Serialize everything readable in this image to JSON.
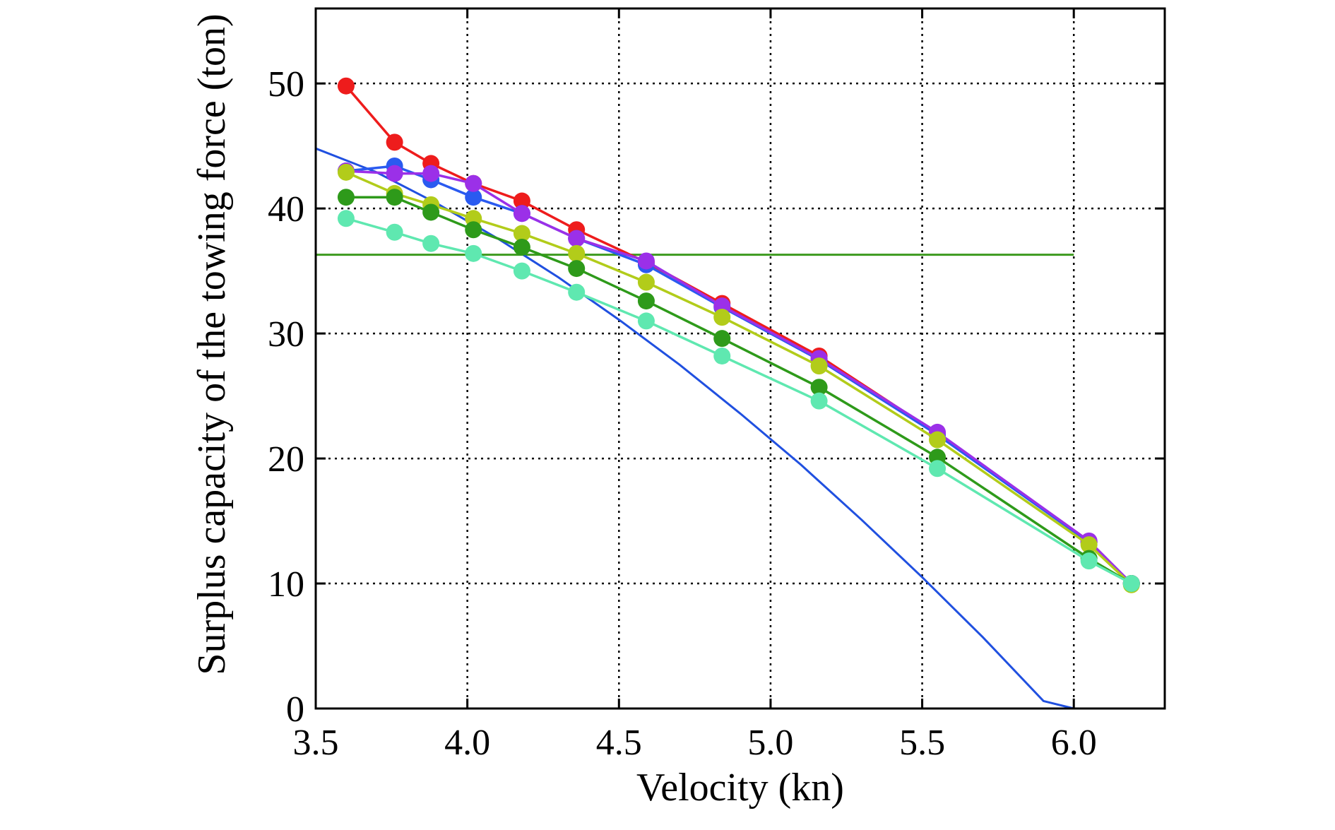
{
  "chart_data": {
    "type": "line",
    "xlabel": "Velocity (kn)",
    "ylabel": "Surplus capacity of the towing force (ton)",
    "xlim": [
      3.5,
      6.3
    ],
    "ylim": [
      0,
      56
    ],
    "xticks": [
      3.5,
      4.0,
      4.5,
      5.0,
      5.5,
      6.0
    ],
    "xtick_labels": [
      "3.5",
      "4.0",
      "4.5",
      "5.0",
      "5.5",
      "6.0"
    ],
    "yticks": [
      0,
      10,
      20,
      30,
      40,
      50
    ],
    "ytick_labels": [
      "0",
      "10",
      "20",
      "30",
      "40",
      "50"
    ],
    "grid": true,
    "grid_style": "dotted",
    "curve": {
      "color": "#2050e0",
      "x": [
        3.5,
        3.7,
        3.9,
        4.1,
        4.3,
        4.5,
        4.7,
        4.9,
        5.1,
        5.3,
        5.5,
        5.7,
        5.9,
        6.0
      ],
      "y": [
        44.8,
        42.9,
        40.4,
        37.6,
        34.5,
        31.1,
        27.5,
        23.6,
        19.5,
        15.1,
        10.5,
        5.7,
        0.6,
        0
      ]
    },
    "threshold": {
      "y": 36.3,
      "x_range": [
        3.5,
        6.0
      ],
      "color": "#3c9a1e"
    },
    "series": [
      {
        "color": "#ee1c1c",
        "x": [
          3.6,
          3.76,
          3.88,
          4.02,
          4.18,
          4.36,
          4.59,
          4.84,
          5.16,
          5.55,
          6.05,
          6.19
        ],
        "y": [
          49.8,
          45.3,
          43.6,
          42.0,
          40.6,
          38.3,
          35.7,
          32.4,
          28.2,
          22.0,
          13.3,
          10.0
        ]
      },
      {
        "color": "#2a5af0",
        "x": [
          3.6,
          3.76,
          3.88,
          4.02,
          4.18,
          4.36,
          4.59,
          4.84,
          5.16,
          5.55,
          6.05,
          6.19
        ],
        "y": [
          43.0,
          43.4,
          42.3,
          40.9,
          39.6,
          37.6,
          35.5,
          32.1,
          27.9,
          21.9,
          13.3,
          10.0
        ]
      },
      {
        "color": "#9b30e8",
        "x": [
          3.6,
          3.76,
          3.88,
          4.02,
          4.18,
          4.36,
          4.59,
          4.84,
          5.16,
          5.55,
          6.05,
          6.19
        ],
        "y": [
          43.0,
          42.8,
          42.8,
          42.0,
          39.6,
          37.6,
          35.8,
          32.2,
          28.0,
          22.1,
          13.4,
          10.0
        ]
      },
      {
        "color": "#b2cc1a",
        "x": [
          3.6,
          3.76,
          3.88,
          4.02,
          4.18,
          4.36,
          4.59,
          4.84,
          5.16,
          5.55,
          6.05,
          6.19
        ],
        "y": [
          42.9,
          41.2,
          40.3,
          39.2,
          38.0,
          36.4,
          34.1,
          31.3,
          27.4,
          21.5,
          13.1,
          9.9
        ]
      },
      {
        "color": "#2e9a1a",
        "x": [
          3.6,
          3.76,
          3.88,
          4.02,
          4.18,
          4.36,
          4.59,
          4.84,
          5.16,
          5.55,
          6.05,
          6.19
        ],
        "y": [
          40.9,
          40.9,
          39.7,
          38.3,
          36.9,
          35.2,
          32.6,
          29.6,
          25.7,
          20.1,
          12.0,
          10.0
        ]
      },
      {
        "color": "#5fe8b0",
        "x": [
          3.6,
          3.76,
          3.88,
          4.02,
          4.18,
          4.36,
          4.59,
          4.84,
          5.16,
          5.55,
          6.05,
          6.19
        ],
        "y": [
          39.2,
          38.1,
          37.2,
          36.4,
          35.0,
          33.3,
          31.0,
          28.2,
          24.6,
          19.2,
          11.8,
          10.0
        ]
      }
    ]
  }
}
